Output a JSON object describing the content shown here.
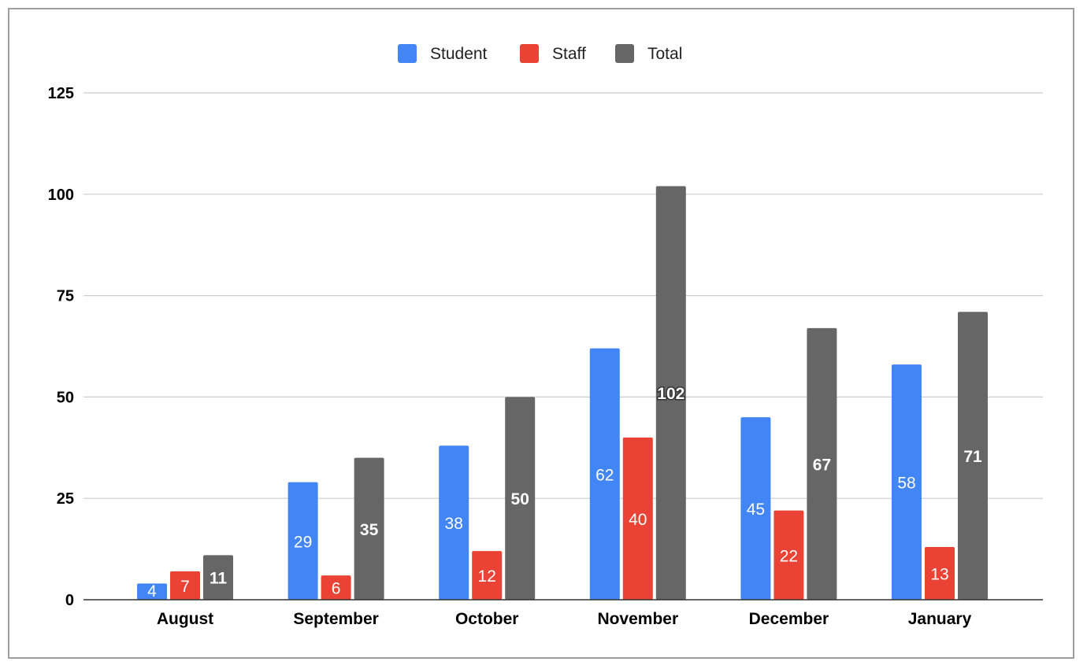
{
  "chart_data": {
    "type": "bar",
    "categories": [
      "August",
      "September",
      "October",
      "November",
      "December",
      "January"
    ],
    "series": [
      {
        "name": "Student",
        "values": [
          4,
          29,
          38,
          62,
          45,
          58
        ],
        "color": "#4285f4"
      },
      {
        "name": "Staff",
        "values": [
          7,
          6,
          12,
          40,
          22,
          13
        ],
        "color": "#ea4335"
      },
      {
        "name": "Total",
        "values": [
          11,
          35,
          50,
          102,
          67,
          71
        ],
        "color": "#666666"
      }
    ],
    "title": "",
    "xlabel": "",
    "ylabel": "",
    "ylim": [
      0,
      125
    ],
    "yticks": [
      0,
      25,
      50,
      75,
      100,
      125
    ],
    "grid": true,
    "legend_position": "top-center",
    "data_labels": true
  }
}
